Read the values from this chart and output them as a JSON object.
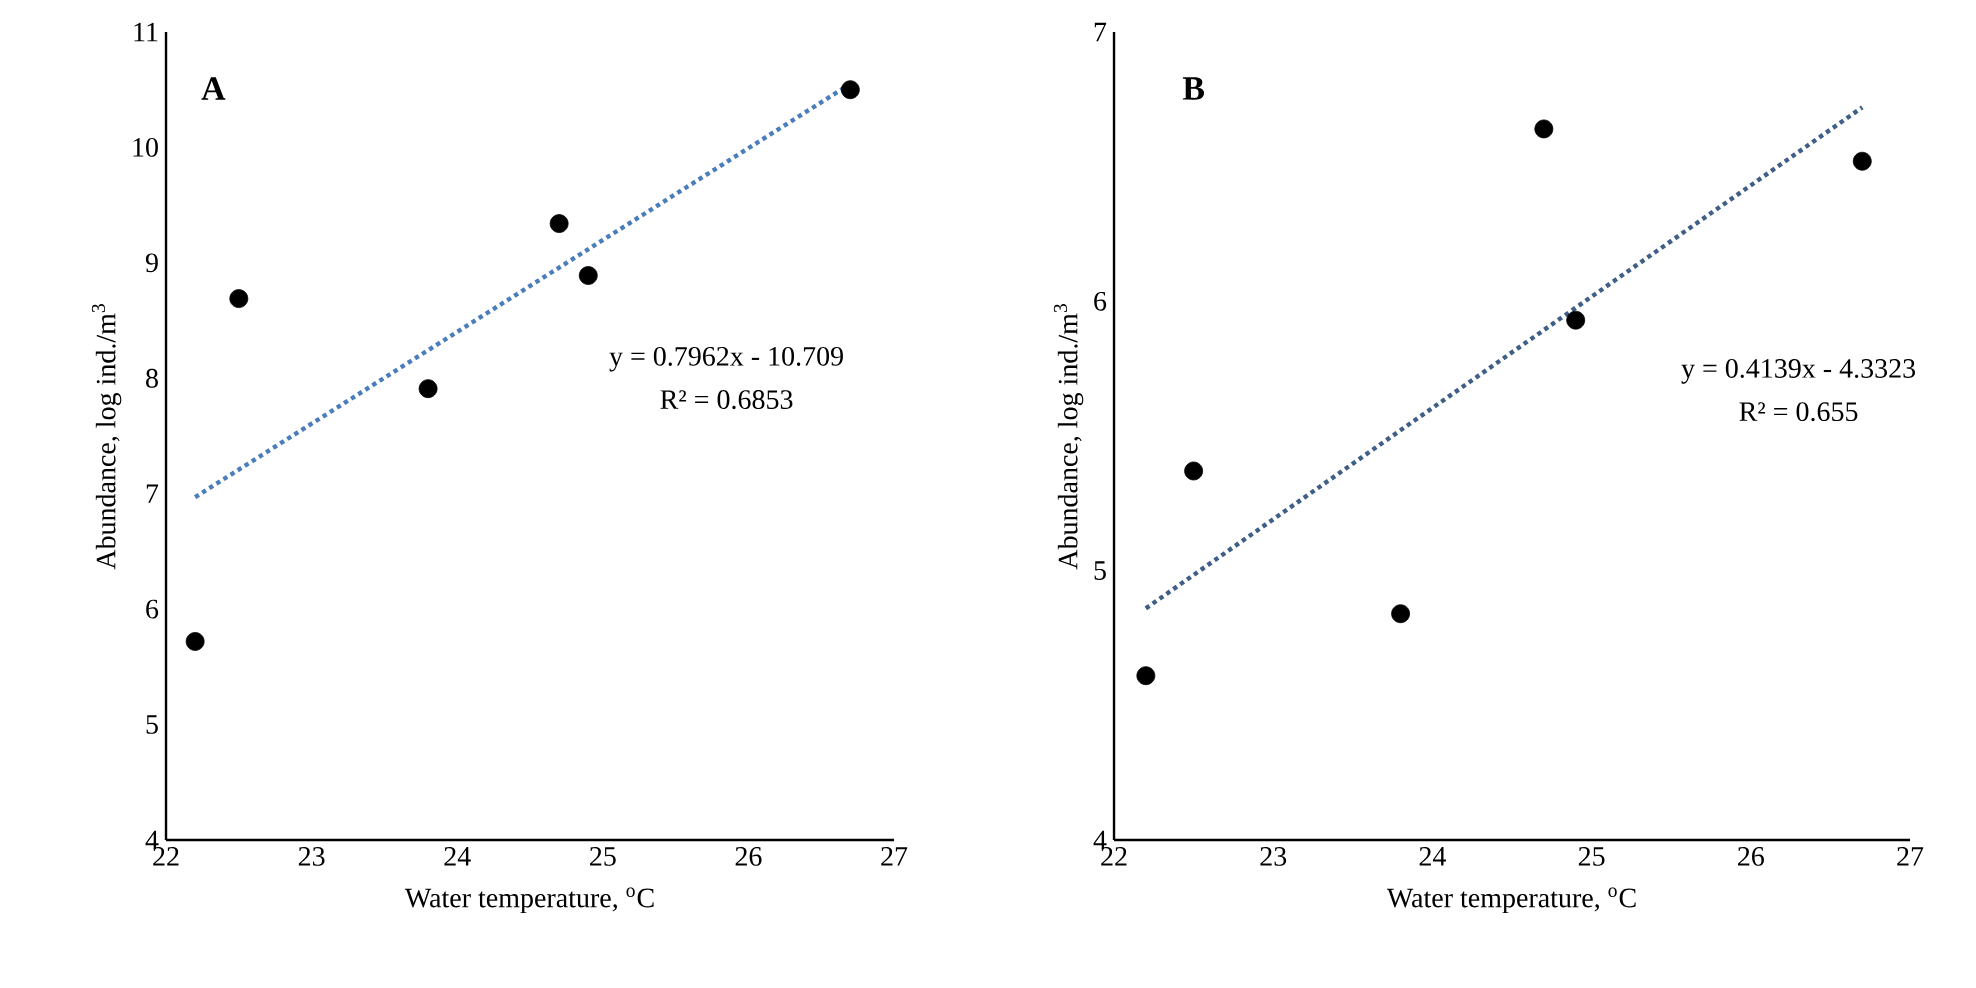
{
  "chart_data": [
    {
      "type": "scatter",
      "title": "A",
      "xlabel": "Water temperature, $^{o}$C",
      "ylabel": "Abundance, log ind./m$^{3}$",
      "xlim": [
        22,
        27
      ],
      "ylim": [
        4,
        11
      ],
      "xticks": [
        22,
        23,
        24,
        25,
        26,
        27
      ],
      "yticks": [
        4,
        5,
        6,
        7,
        8,
        9,
        10,
        11
      ],
      "grid": false,
      "series": [
        {
          "type": "scatter",
          "marker": "circle",
          "color": "#000000",
          "x": [
            22.2,
            22.5,
            23.8,
            24.7,
            24.9,
            26.7
          ],
          "values": [
            5.72,
            8.69,
            7.91,
            9.34,
            8.89,
            10.5
          ]
        },
        {
          "type": "line",
          "color": "#4a7ebb",
          "line_style": "dotted",
          "x": [
            22.2,
            26.7
          ],
          "values": [
            6.97,
            10.55
          ]
        }
      ],
      "annotations": [
        "y = 0.7962x - 10.709",
        "R² = 0.6853"
      ]
    },
    {
      "type": "scatter",
      "title": "B",
      "xlabel": "Water temperature, $^{o}$C",
      "ylabel": "Abundance, log ind./m$^{3}$",
      "xlim": [
        22,
        27
      ],
      "ylim": [
        4,
        7
      ],
      "xticks": [
        22,
        23,
        24,
        25,
        26,
        27
      ],
      "yticks": [
        4,
        5,
        6,
        7
      ],
      "grid": false,
      "series": [
        {
          "type": "scatter",
          "marker": "circle",
          "color": "#000000",
          "x": [
            22.2,
            22.5,
            23.8,
            24.7,
            24.9,
            26.7
          ],
          "values": [
            4.61,
            5.37,
            4.84,
            6.64,
            5.93,
            6.52
          ]
        },
        {
          "type": "line",
          "color": "#3f5f86",
          "line_style": "dotted",
          "x": [
            22.2,
            26.7
          ],
          "values": [
            4.86,
            6.72
          ]
        }
      ],
      "annotations": [
        "y = 0.4139x - 4.3323",
        "R² = 0.655"
      ]
    }
  ]
}
